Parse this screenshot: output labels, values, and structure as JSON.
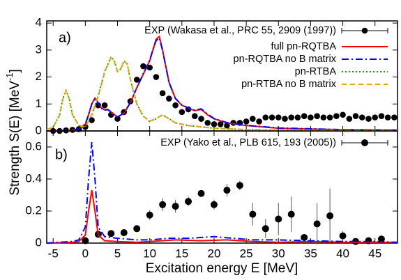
{
  "chart_data": [
    {
      "type": "line",
      "panel_label": "a)",
      "ylabel": "Strength S(E) [MeV",
      "ylabel_superscript": "-1",
      "ylabel_end": "]",
      "xlim": [
        -6,
        48.5
      ],
      "xticks": [
        -5,
        0,
        5,
        10,
        15,
        20,
        25,
        30,
        35,
        40,
        45
      ],
      "ylim": [
        0,
        4.08
      ],
      "yticks": [
        0,
        1,
        2,
        3,
        4
      ],
      "series": [
        {
          "name": "EXP (Wakasa et al., PRC 55, 2909 (1997))",
          "style": "points",
          "color": "#000000",
          "x": [
            -5,
            -4,
            -3,
            -2,
            -1,
            0,
            1,
            2,
            3,
            4,
            5,
            6,
            7,
            8,
            9,
            10,
            11,
            12,
            13,
            14,
            15,
            16,
            17,
            18,
            19,
            20,
            21,
            22,
            23,
            24,
            25,
            26,
            27,
            28,
            29,
            30,
            31,
            32,
            33,
            34,
            35,
            36,
            37,
            38,
            39,
            40,
            41,
            42,
            43,
            44,
            45,
            46,
            47,
            48
          ],
          "values": [
            0,
            0,
            0.02,
            0.04,
            0.07,
            0.15,
            0.4,
            0.95,
            0.95,
            0.6,
            0.45,
            0.7,
            1.1,
            1.9,
            2.4,
            2.35,
            2,
            1.4,
            1.2,
            0.95,
            0.7,
            0.8,
            0.55,
            0.45,
            0.3,
            0.25,
            0.25,
            0.2,
            0.3,
            0.3,
            0.35,
            0.45,
            0.35,
            0.5,
            0.5,
            0.5,
            0.45,
            0.5,
            0.5,
            0.55,
            0.5,
            0.55,
            0.5,
            0.5,
            0.55,
            0.6,
            0.45,
            0.55,
            0.5,
            0.45,
            0.5,
            0.55,
            0.5,
            0.5
          ]
        },
        {
          "name": "full pn-RQTBA",
          "style": "solid",
          "color": "#ff0000",
          "x": [
            -6,
            -4,
            -2,
            -1,
            0,
            0.5,
            1,
            1.5,
            2,
            2.5,
            3,
            3.5,
            4,
            5,
            6,
            7,
            8,
            9,
            10,
            10.5,
            11,
            11.5,
            12,
            12.5,
            13,
            14,
            15,
            16,
            17,
            18,
            19,
            20,
            22,
            25,
            30,
            35,
            40,
            48.5
          ],
          "values": [
            0,
            0,
            0.02,
            0.08,
            0.25,
            0.6,
            1,
            1.22,
            1.05,
            0.85,
            0.78,
            0.8,
            0.7,
            0.52,
            0.65,
            1.05,
            1.6,
            2.1,
            2.6,
            3,
            3.4,
            3.5,
            3,
            2.4,
            1.8,
            1.2,
            0.95,
            0.85,
            0.75,
            0.8,
            0.6,
            0.45,
            0.3,
            0.2,
            0.1,
            0.07,
            0.05,
            0.03
          ]
        },
        {
          "name": "pn-RQTBA no B matrix",
          "style": "dashdot",
          "color": "#0000ff",
          "x": [
            -6,
            -4,
            -2,
            -1,
            0,
            0.5,
            1,
            1.5,
            2,
            2.5,
            3,
            3.5,
            4,
            5,
            6,
            7,
            8,
            9,
            10,
            10.5,
            11,
            11.5,
            12,
            12.5,
            13,
            14,
            15,
            16,
            17,
            18,
            19,
            20,
            22,
            25,
            30,
            35,
            40,
            48.5
          ],
          "values": [
            0,
            0,
            0.02,
            0.08,
            0.25,
            0.6,
            1,
            1.2,
            1.03,
            0.84,
            0.77,
            0.79,
            0.7,
            0.52,
            0.66,
            1.05,
            1.6,
            2.12,
            2.62,
            3.02,
            3.35,
            3.45,
            2.98,
            2.4,
            1.8,
            1.2,
            0.96,
            0.86,
            0.77,
            0.82,
            0.62,
            0.46,
            0.31,
            0.21,
            0.11,
            0.08,
            0.05,
            0.03
          ]
        },
        {
          "name": "pn-RTBA",
          "style": "dotted",
          "color": "#00aa00",
          "x": [
            -6,
            -5,
            -4,
            -3.5,
            -3,
            -2.5,
            -2,
            -1,
            0,
            1,
            2,
            3,
            4,
            4.5,
            5,
            5.5,
            6,
            6.5,
            7,
            8,
            9,
            10,
            11,
            12,
            13,
            14,
            16,
            20,
            25,
            30,
            48.5
          ],
          "values": [
            0.05,
            0.15,
            0.6,
            1.2,
            1.5,
            1.2,
            0.6,
            0.2,
            0.15,
            0.6,
            1.3,
            2.2,
            2.75,
            2.6,
            2.2,
            2.3,
            2.6,
            2.5,
            1.9,
            1,
            0.55,
            0.35,
            0.45,
            0.6,
            0.45,
            0.3,
            0.2,
            0.1,
            0.05,
            0.03,
            0.01
          ]
        },
        {
          "name": "pn-RTBA no B matrix",
          "style": "dashed",
          "color": "#f0a000",
          "x": [
            -6,
            -5,
            -4,
            -3.5,
            -3,
            -2.5,
            -2,
            -1,
            0,
            1,
            2,
            3,
            4,
            4.5,
            5,
            5.5,
            6,
            6.5,
            7,
            8,
            9,
            10,
            11,
            12,
            13,
            14,
            16,
            20,
            25,
            30,
            48.5
          ],
          "values": [
            0.05,
            0.14,
            0.58,
            1.18,
            1.48,
            1.18,
            0.6,
            0.2,
            0.15,
            0.58,
            1.28,
            2.18,
            2.72,
            2.58,
            2.2,
            2.3,
            2.58,
            2.48,
            1.9,
            1,
            0.55,
            0.36,
            0.46,
            0.6,
            0.45,
            0.3,
            0.2,
            0.1,
            0.05,
            0.03,
            0.01
          ]
        }
      ]
    },
    {
      "type": "line",
      "panel_label": "b)",
      "xlabel": "Excitation energy E [MeV]",
      "xlim": [
        -6,
        48.5
      ],
      "xticks": [
        -5,
        0,
        5,
        10,
        15,
        20,
        25,
        30,
        35,
        40,
        45
      ],
      "ylim": [
        0,
        0.7
      ],
      "yticks": [
        0,
        0.2,
        0.4,
        0.6
      ],
      "series": [
        {
          "name": "EXP (Yako et al., PLB 615, 193 (2005))",
          "style": "points",
          "color": "#000000",
          "x": [
            0,
            2,
            4,
            6,
            8,
            10,
            12,
            14,
            16,
            18,
            20,
            22,
            24,
            26,
            28,
            30,
            32,
            34,
            36,
            38,
            40,
            42,
            44,
            46
          ],
          "values": [
            0.015,
            0.055,
            0.06,
            0.065,
            0.09,
            0.175,
            0.24,
            0.23,
            0.26,
            0.31,
            0.24,
            0.33,
            0.36,
            0.18,
            0.09,
            0.15,
            0.18,
            0.035,
            0.12,
            0.17,
            0.045,
            0.01,
            0.015,
            0.025
          ],
          "errors": [
            0.01,
            0.01,
            0.015,
            0.02,
            0.02,
            0.03,
            0.04,
            0.04,
            0.03,
            0.02,
            0.03,
            0.04,
            0.03,
            0.07,
            0.06,
            0.1,
            0.11,
            0.02,
            0.13,
            0.17,
            0.03,
            0.01,
            0.01,
            0.02
          ]
        },
        {
          "style": "solid",
          "color": "#ff0000",
          "x": [
            -6,
            -2,
            -1,
            0,
            0.5,
            1,
            1.5,
            2,
            3,
            5,
            8,
            10,
            14,
            18,
            22,
            26,
            30,
            35,
            40,
            48.5
          ],
          "values": [
            0,
            0.005,
            0.01,
            0.05,
            0.2,
            0.33,
            0.2,
            0.05,
            0.015,
            0.01,
            0.005,
            0.01,
            0.02,
            0.015,
            0.02,
            0.01,
            0.005,
            0.01,
            0.005,
            0.005
          ]
        },
        {
          "style": "dashdot",
          "color": "#0000ff",
          "x": [
            -6,
            -2,
            -1,
            0,
            0.5,
            1,
            1.5,
            2,
            3,
            5,
            8,
            10,
            13,
            16,
            20,
            23,
            26,
            30,
            35,
            40,
            45,
            48.5
          ],
          "values": [
            0,
            0.01,
            0.02,
            0.1,
            0.4,
            0.63,
            0.4,
            0.1,
            0.04,
            0.03,
            0.02,
            0.02,
            0.03,
            0.03,
            0.04,
            0.03,
            0.02,
            0.02,
            0.015,
            0.01,
            0.01,
            0.005
          ]
        }
      ]
    }
  ]
}
